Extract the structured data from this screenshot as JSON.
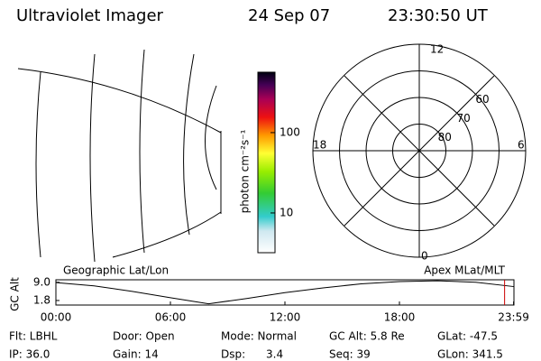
{
  "header": {
    "title": "Ultraviolet Imager",
    "date": "24 Sep 07",
    "time": "23:30:50 UT"
  },
  "colorbar": {
    "label": "photon cm⁻²s⁻¹",
    "scale": "log",
    "lim": [
      3.2,
      565
    ],
    "ticks": [
      10,
      100
    ]
  },
  "polar": {
    "mlt_labels": {
      "top": "12",
      "left": "18",
      "right": "6",
      "bottom": "0"
    },
    "lat_circles": [
      80,
      70,
      60,
      50
    ],
    "lat_labels": [
      60,
      70,
      80
    ]
  },
  "chart_data": {
    "type": "line",
    "ylabel": "GC Alt",
    "left_label": "Geographic Lat/Lon",
    "right_label": "Apex MLat/MLT",
    "x": [
      0,
      2,
      4,
      6,
      8,
      10,
      12,
      14,
      16,
      18,
      20,
      22,
      24
    ],
    "series": [
      {
        "name": "GC Alt",
        "color": "#000000",
        "values": [
          8.9,
          7.6,
          5.4,
          2.9,
          0.5,
          2.6,
          4.9,
          6.8,
          8.4,
          9.3,
          9.6,
          9.0,
          7.3
        ]
      }
    ],
    "xlim": [
      0,
      24
    ],
    "xticks": [
      {
        "value": 0,
        "label": "00:00"
      },
      {
        "value": 6,
        "label": "06:00"
      },
      {
        "value": 12,
        "label": "12:00"
      },
      {
        "value": 18,
        "label": "18:00"
      },
      {
        "value": 23.98,
        "label": "23:59"
      }
    ],
    "ylim": [
      0,
      10
    ],
    "yticks": [
      {
        "value": 1.8,
        "label": "1.8"
      },
      {
        "value": 9,
        "label": "9.0"
      }
    ],
    "current_time": 23.51,
    "current_color": "#cc0000"
  },
  "footer": [
    [
      "Flt: LBHL",
      "Door: Open",
      "Mode: Normal",
      "GC Alt: 5.8 Re",
      "GLat: -47.5"
    ],
    [
      "IP: 36.0",
      "Gain: 14",
      "Dsp:      3.4",
      "Seq: 39",
      "GLon: 341.5"
    ]
  ]
}
